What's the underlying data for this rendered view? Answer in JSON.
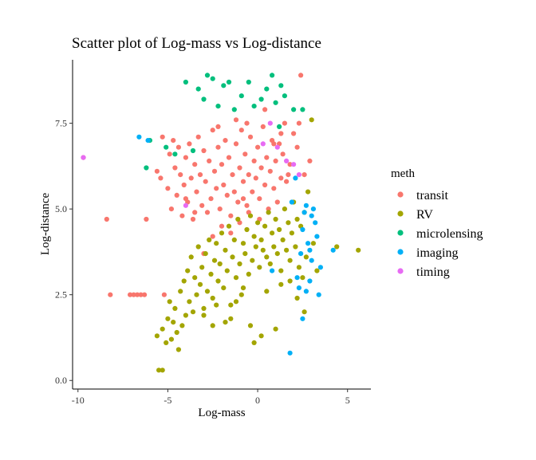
{
  "chart_data": {
    "type": "scatter",
    "title": "Scatter plot of Log-mass vs Log-distance",
    "xlabel": "Log-mass",
    "ylabel": "Log-distance",
    "xlim": [
      -10.3,
      6.3
    ],
    "ylim": [
      -0.25,
      9.35
    ],
    "x_ticks": [
      -10,
      -5,
      0,
      5
    ],
    "y_ticks": [
      0.0,
      2.5,
      5.0,
      7.5
    ],
    "x_tick_labels": [
      "-10",
      "-5",
      "0",
      "5"
    ],
    "y_tick_labels": [
      "0.0",
      "2.5",
      "5.0",
      "7.5"
    ],
    "grid": false,
    "legend": {
      "title": "meth",
      "position": "right"
    },
    "series": [
      {
        "name": "transit",
        "color": "#F8766D",
        "points": [
          [
            -9.7,
            6.5
          ],
          [
            -8.4,
            4.7
          ],
          [
            -8.2,
            2.5
          ],
          [
            -7.1,
            2.5
          ],
          [
            -6.9,
            2.5
          ],
          [
            -6.7,
            2.5
          ],
          [
            -6.5,
            2.5
          ],
          [
            -6.3,
            2.5
          ],
          [
            -6.2,
            4.7
          ],
          [
            -5.6,
            6.1
          ],
          [
            -5.4,
            5.9
          ],
          [
            -5.3,
            7.1
          ],
          [
            -5.2,
            2.5
          ],
          [
            -5.0,
            5.6
          ],
          [
            -4.9,
            6.6
          ],
          [
            -4.8,
            5.0
          ],
          [
            -4.7,
            7.0
          ],
          [
            -4.6,
            6.2
          ],
          [
            -4.5,
            5.4
          ],
          [
            -4.4,
            6.8
          ],
          [
            -4.3,
            6.0
          ],
          [
            -4.2,
            4.8
          ],
          [
            -4.1,
            5.7
          ],
          [
            -4.0,
            6.5
          ],
          [
            -3.9,
            5.2
          ],
          [
            -3.8,
            6.9
          ],
          [
            -3.7,
            5.9
          ],
          [
            -3.6,
            4.7
          ],
          [
            -3.5,
            6.3
          ],
          [
            -3.4,
            5.5
          ],
          [
            -3.3,
            7.1
          ],
          [
            -3.2,
            6.0
          ],
          [
            -3.1,
            5.1
          ],
          [
            -3.0,
            6.7
          ],
          [
            -2.9,
            5.8
          ],
          [
            -2.8,
            4.9
          ],
          [
            -2.7,
            6.4
          ],
          [
            -2.6,
            5.3
          ],
          [
            -2.5,
            7.3
          ],
          [
            -2.4,
            6.1
          ],
          [
            -2.3,
            5.6
          ],
          [
            -2.2,
            6.8
          ],
          [
            -2.1,
            5.0
          ],
          [
            -2.0,
            6.3
          ],
          [
            -1.9,
            5.7
          ],
          [
            -1.8,
            7.0
          ],
          [
            -1.7,
            5.4
          ],
          [
            -1.6,
            6.5
          ],
          [
            -1.5,
            4.8
          ],
          [
            -1.4,
            6.0
          ],
          [
            -1.3,
            5.5
          ],
          [
            -1.2,
            6.9
          ],
          [
            -1.1,
            5.2
          ],
          [
            -1.0,
            6.2
          ],
          [
            -0.9,
            7.3
          ],
          [
            -0.8,
            5.8
          ],
          [
            -0.7,
            6.6
          ],
          [
            -0.6,
            5.1
          ],
          [
            -0.5,
            6.0
          ],
          [
            -0.4,
            7.1
          ],
          [
            -0.3,
            5.5
          ],
          [
            -0.2,
            6.4
          ],
          [
            -0.1,
            5.9
          ],
          [
            0.0,
            6.8
          ],
          [
            0.1,
            5.3
          ],
          [
            0.2,
            6.2
          ],
          [
            0.3,
            7.4
          ],
          [
            0.4,
            5.7
          ],
          [
            0.5,
            6.5
          ],
          [
            0.6,
            5.0
          ],
          [
            0.7,
            6.1
          ],
          [
            0.8,
            7.0
          ],
          [
            0.9,
            5.6
          ],
          [
            1.0,
            6.4
          ],
          [
            1.1,
            5.2
          ],
          [
            1.2,
            6.9
          ],
          [
            1.3,
            5.9
          ],
          [
            1.4,
            6.6
          ],
          [
            1.5,
            7.5
          ],
          [
            1.6,
            5.8
          ],
          [
            1.8,
            6.3
          ],
          [
            2.0,
            7.2
          ],
          [
            2.2,
            6.8
          ],
          [
            2.4,
            8.9
          ],
          [
            2.6,
            6.0
          ],
          [
            2.9,
            6.4
          ],
          [
            -3.0,
            3.7
          ],
          [
            -2.5,
            4.2
          ],
          [
            -2.0,
            4.5
          ],
          [
            -1.5,
            4.3
          ],
          [
            -1.0,
            4.6
          ],
          [
            -0.5,
            4.9
          ],
          [
            0.1,
            4.7
          ],
          [
            -2.2,
            7.4
          ],
          [
            -1.2,
            7.6
          ],
          [
            -0.6,
            7.5
          ],
          [
            0.4,
            7.9
          ],
          [
            1.3,
            7.2
          ],
          [
            -3.5,
            4.9
          ],
          [
            -4.0,
            5.3
          ],
          [
            -0.8,
            5.3
          ],
          [
            0.9,
            6.9
          ],
          [
            1.7,
            6.0
          ],
          [
            2.3,
            7.5
          ]
        ]
      },
      {
        "name": "RV",
        "color": "#A3A500",
        "points": [
          [
            -5.5,
            0.3
          ],
          [
            -5.3,
            0.3
          ],
          [
            -5.6,
            1.3
          ],
          [
            -5.3,
            1.5
          ],
          [
            -5.0,
            1.8
          ],
          [
            -4.8,
            1.2
          ],
          [
            -4.6,
            2.1
          ],
          [
            -4.5,
            1.4
          ],
          [
            -4.4,
            0.9
          ],
          [
            -4.3,
            2.6
          ],
          [
            -4.2,
            1.6
          ],
          [
            -4.1,
            2.9
          ],
          [
            -4.0,
            1.9
          ],
          [
            -3.9,
            3.2
          ],
          [
            -3.8,
            2.3
          ],
          [
            -3.7,
            3.6
          ],
          [
            -3.6,
            2.0
          ],
          [
            -3.5,
            3.0
          ],
          [
            -3.4,
            2.5
          ],
          [
            -3.3,
            3.9
          ],
          [
            -3.2,
            2.8
          ],
          [
            -3.1,
            3.3
          ],
          [
            -3.0,
            2.1
          ],
          [
            -2.9,
            3.7
          ],
          [
            -2.8,
            2.6
          ],
          [
            -2.7,
            4.1
          ],
          [
            -2.6,
            3.1
          ],
          [
            -2.5,
            2.4
          ],
          [
            -2.4,
            3.5
          ],
          [
            -2.3,
            4.0
          ],
          [
            -2.2,
            2.9
          ],
          [
            -2.1,
            3.4
          ],
          [
            -2.0,
            4.3
          ],
          [
            -1.9,
            2.7
          ],
          [
            -1.8,
            3.8
          ],
          [
            -1.7,
            3.2
          ],
          [
            -1.6,
            4.5
          ],
          [
            -1.5,
            2.2
          ],
          [
            -1.4,
            3.6
          ],
          [
            -1.3,
            4.1
          ],
          [
            -1.2,
            3.0
          ],
          [
            -1.1,
            4.7
          ],
          [
            -1.0,
            3.4
          ],
          [
            -0.9,
            2.5
          ],
          [
            -0.8,
            4.0
          ],
          [
            -0.7,
            3.7
          ],
          [
            -0.6,
            4.4
          ],
          [
            -0.5,
            3.1
          ],
          [
            -0.4,
            4.8
          ],
          [
            -0.3,
            3.5
          ],
          [
            -0.2,
            4.2
          ],
          [
            -0.1,
            3.9
          ],
          [
            0.0,
            4.6
          ],
          [
            0.1,
            3.3
          ],
          [
            0.2,
            4.1
          ],
          [
            0.3,
            3.8
          ],
          [
            0.4,
            4.5
          ],
          [
            0.5,
            3.6
          ],
          [
            0.6,
            4.9
          ],
          [
            0.7,
            3.4
          ],
          [
            0.8,
            4.3
          ],
          [
            0.9,
            3.9
          ],
          [
            1.0,
            4.7
          ],
          [
            1.1,
            3.7
          ],
          [
            1.2,
            4.4
          ],
          [
            1.3,
            3.2
          ],
          [
            1.4,
            4.1
          ],
          [
            1.5,
            5.0
          ],
          [
            1.6,
            3.8
          ],
          [
            1.7,
            4.6
          ],
          [
            1.8,
            3.5
          ],
          [
            1.9,
            4.3
          ],
          [
            2.0,
            5.2
          ],
          [
            2.1,
            3.9
          ],
          [
            2.2,
            4.7
          ],
          [
            2.3,
            3.3
          ],
          [
            2.4,
            4.5
          ],
          [
            2.5,
            3.0
          ],
          [
            2.6,
            4.9
          ],
          [
            2.7,
            3.6
          ],
          [
            2.8,
            5.5
          ],
          [
            3.0,
            7.6
          ],
          [
            3.1,
            4.0
          ],
          [
            3.3,
            3.2
          ],
          [
            4.4,
            3.9
          ],
          [
            5.6,
            3.8
          ],
          [
            -0.4,
            1.6
          ],
          [
            0.2,
            1.3
          ],
          [
            -0.2,
            1.1
          ],
          [
            -1.5,
            1.8
          ],
          [
            -2.5,
            1.6
          ],
          [
            -3.0,
            1.9
          ],
          [
            -1.8,
            1.7
          ],
          [
            -2.3,
            2.2
          ],
          [
            1.0,
            1.5
          ],
          [
            -0.8,
            2.7
          ],
          [
            -1.2,
            2.3
          ],
          [
            0.5,
            2.6
          ],
          [
            1.3,
            2.8
          ],
          [
            2.2,
            2.4
          ],
          [
            2.6,
            2.0
          ],
          [
            1.8,
            2.9
          ],
          [
            -4.7,
            1.7
          ],
          [
            -5.1,
            1.1
          ],
          [
            -4.9,
            2.3
          ]
        ]
      },
      {
        "name": "microlensing",
        "color": "#00BF7D",
        "points": [
          [
            -4.0,
            8.7
          ],
          [
            -3.3,
            8.5
          ],
          [
            -3.0,
            8.2
          ],
          [
            -2.8,
            8.9
          ],
          [
            -2.5,
            8.8
          ],
          [
            -2.2,
            8.0
          ],
          [
            -1.9,
            8.6
          ],
          [
            -1.6,
            8.7
          ],
          [
            -1.3,
            7.9
          ],
          [
            -0.9,
            8.3
          ],
          [
            -0.5,
            8.7
          ],
          [
            -0.2,
            8.0
          ],
          [
            0.2,
            8.2
          ],
          [
            0.5,
            8.5
          ],
          [
            0.8,
            8.9
          ],
          [
            1.0,
            8.1
          ],
          [
            1.3,
            8.6
          ],
          [
            1.5,
            8.3
          ],
          [
            2.0,
            7.9
          ],
          [
            2.5,
            7.9
          ],
          [
            -6.2,
            6.2
          ],
          [
            -4.6,
            6.6
          ],
          [
            -5.1,
            6.8
          ],
          [
            -3.6,
            6.7
          ],
          [
            1.2,
            7.4
          ],
          [
            -6.0,
            7.0
          ]
        ]
      },
      {
        "name": "imaging",
        "color": "#00B0F6",
        "points": [
          [
            -6.6,
            7.1
          ],
          [
            -6.1,
            7.0
          ],
          [
            1.8,
            0.8
          ],
          [
            2.5,
            1.8
          ],
          [
            2.9,
            3.8
          ],
          [
            3.2,
            4.6
          ],
          [
            3.4,
            2.5
          ],
          [
            3.5,
            3.3
          ],
          [
            2.6,
            4.9
          ],
          [
            2.8,
            4.0
          ],
          [
            3.1,
            5.0
          ],
          [
            2.4,
            3.7
          ],
          [
            2.7,
            2.6
          ],
          [
            2.2,
            3.0
          ],
          [
            3.0,
            3.5
          ],
          [
            2.5,
            4.4
          ],
          [
            3.3,
            4.2
          ],
          [
            2.9,
            2.9
          ],
          [
            4.2,
            3.8
          ],
          [
            2.3,
            2.7
          ],
          [
            1.9,
            5.2
          ],
          [
            0.8,
            3.2
          ],
          [
            2.1,
            5.9
          ],
          [
            2.7,
            5.1
          ],
          [
            3.0,
            4.8
          ]
        ]
      },
      {
        "name": "timing",
        "color": "#E76BF3",
        "points": [
          [
            -9.7,
            6.5
          ],
          [
            -4.0,
            5.1
          ],
          [
            0.3,
            6.9
          ],
          [
            1.1,
            6.8
          ],
          [
            2.0,
            6.3
          ],
          [
            2.3,
            6.0
          ],
          [
            0.7,
            7.5
          ],
          [
            1.6,
            6.4
          ]
        ]
      }
    ]
  }
}
